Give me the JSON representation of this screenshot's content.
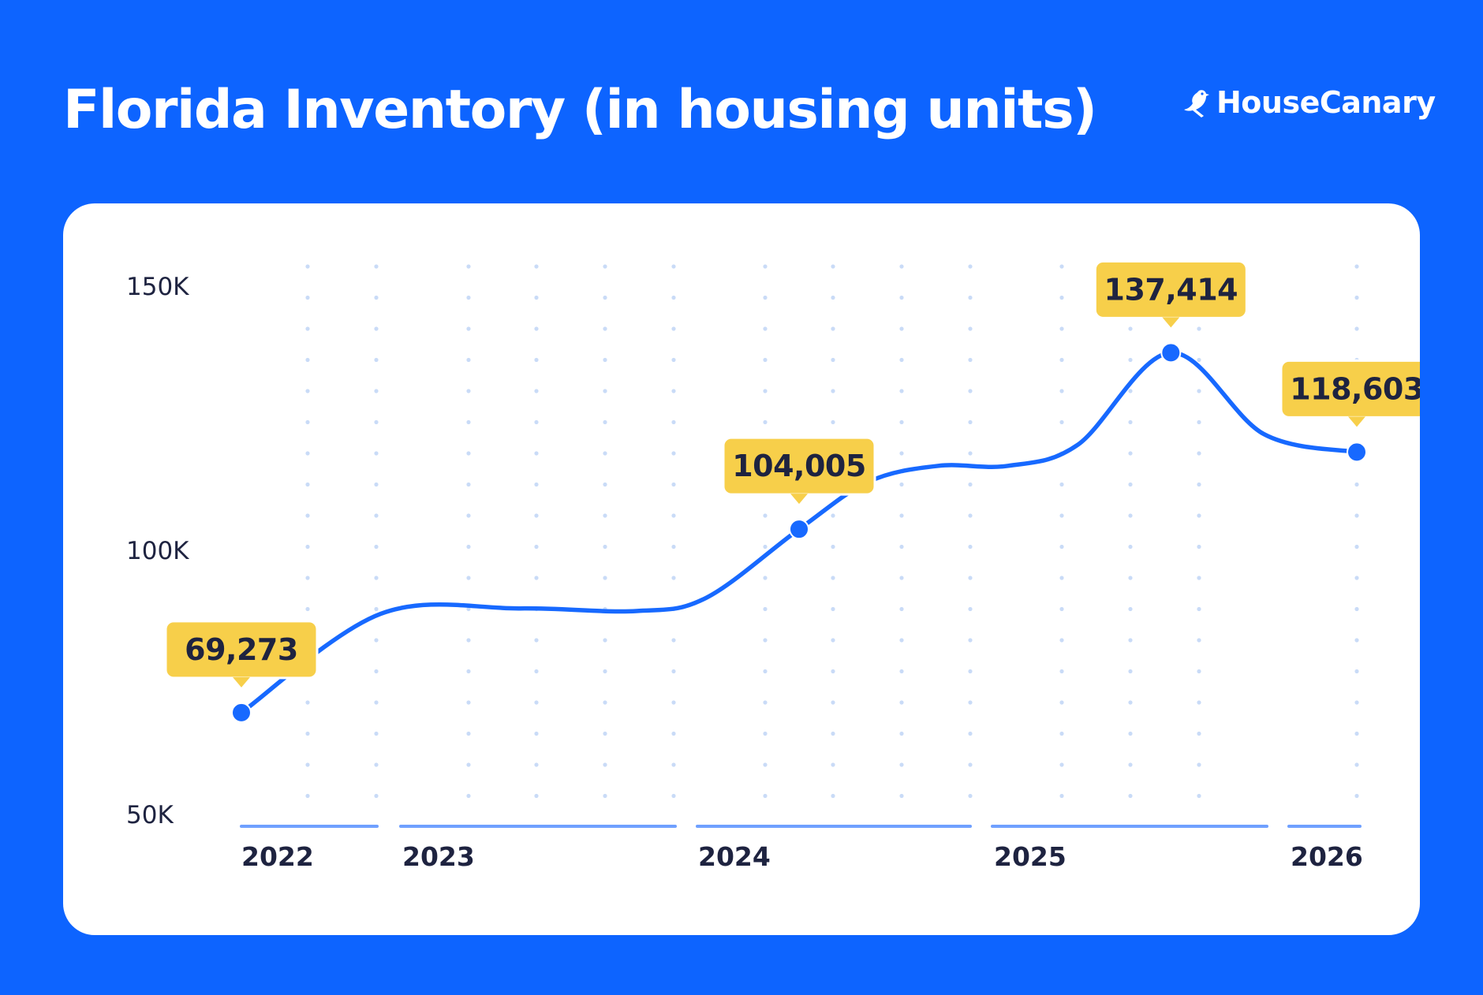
{
  "header": {
    "title": "Florida Inventory (in housing units)",
    "brand": "HouseCanary",
    "brand_icon": "canary-bird-icon"
  },
  "colors": {
    "background": "#0d64ff",
    "card": "#ffffff",
    "line": "#1769ff",
    "callout": "#f7cf4a",
    "axis_bar": "#6fa0ff",
    "grid_dot": "#c9dbf7",
    "text_dark": "#1e2340"
  },
  "chart_data": {
    "type": "line",
    "title": "Florida Inventory (in housing units)",
    "xlabel": "",
    "ylabel": "",
    "y_ticks": [
      "150K",
      "100K",
      "50K"
    ],
    "ylim": [
      50000,
      150000
    ],
    "x_ticks": [
      "2022",
      "2023",
      "2024",
      "2025",
      "2026"
    ],
    "xlim": [
      "2022-01",
      "2026-01"
    ],
    "grid": "dotted",
    "series": [
      {
        "points": [
          {
            "date": "2022-01",
            "value": 69273
          },
          {
            "date": "2022-07",
            "value": 88000
          },
          {
            "date": "2023-01",
            "value": 89000
          },
          {
            "date": "2023-06",
            "value": 88500
          },
          {
            "date": "2023-09",
            "value": 91000
          },
          {
            "date": "2024-01",
            "value": 104005
          },
          {
            "date": "2024-04",
            "value": 113000
          },
          {
            "date": "2024-07",
            "value": 116000
          },
          {
            "date": "2024-10",
            "value": 116000
          },
          {
            "date": "2025-01",
            "value": 120000
          },
          {
            "date": "2025-05",
            "value": 137414
          },
          {
            "date": "2025-09",
            "value": 122000
          },
          {
            "date": "2026-01",
            "value": 118603
          }
        ]
      }
    ],
    "callouts": [
      {
        "date": "2022-01",
        "value": 69273,
        "label": "69,273"
      },
      {
        "date": "2024-01",
        "value": 104005,
        "label": "104,005"
      },
      {
        "date": "2025-05",
        "value": 137414,
        "label": "137,414"
      },
      {
        "date": "2026-01",
        "value": 118603,
        "label": "118,603"
      }
    ]
  }
}
